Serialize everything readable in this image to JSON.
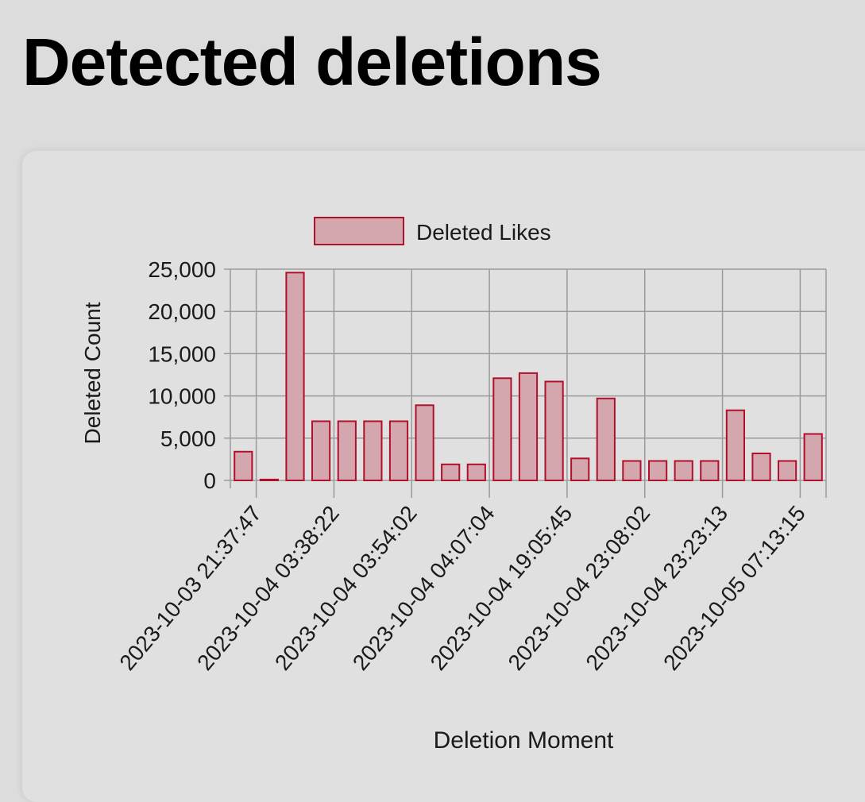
{
  "page": {
    "title": "Detected deletions"
  },
  "colors": {
    "bar_fill": "#d4a6ae",
    "bar_stroke": "#b0102a",
    "grid": "#9a9a9a",
    "background": "#dcdcdc",
    "card": "#e0e0e0"
  },
  "chart_data": {
    "type": "bar",
    "xlabel": "Deletion Moment",
    "ylabel": "Deleted Count",
    "ylim": [
      0,
      25000
    ],
    "yticks": [
      "25,000",
      "20,000",
      "15,000",
      "10,000",
      "5,000",
      "0"
    ],
    "legend": "top-center",
    "grid": true,
    "series": [
      {
        "name": "Deleted Likes",
        "values": [
          3400,
          100,
          24600,
          7000,
          7000,
          7000,
          7000,
          8900,
          1900,
          1900,
          12100,
          12700,
          11700,
          2600,
          9700,
          2300,
          2300,
          2300,
          2300,
          8300,
          3200,
          2300,
          5500
        ]
      }
    ],
    "tick_labels": [
      "2023-10-03 21:37:47",
      "2023-10-04 03:38:22",
      "2023-10-04 03:54:02",
      "2023-10-04 04:07:04",
      "2023-10-04 19:05:45",
      "2023-10-04 23:08:02",
      "2023-10-04 23:23:13",
      "2023-10-05 07:13:15"
    ]
  }
}
